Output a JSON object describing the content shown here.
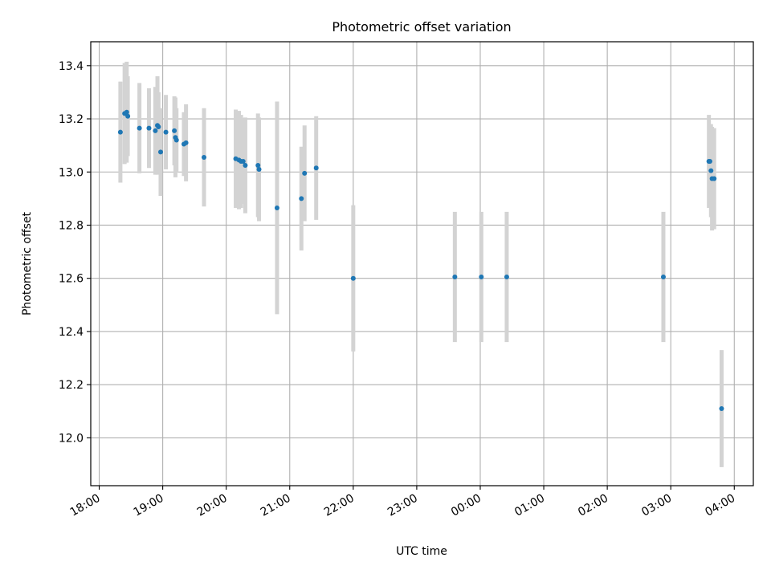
{
  "chart_data": {
    "type": "scatter",
    "title": "Photometric offset variation",
    "xlabel": "UTC time",
    "ylabel": "Photometric offset",
    "x_type": "time",
    "xlim": [
      "17:52",
      "04:18"
    ],
    "ylim": [
      11.82,
      13.49
    ],
    "x_ticks": [
      "18:00",
      "19:00",
      "20:00",
      "21:00",
      "22:00",
      "23:00",
      "00:00",
      "01:00",
      "02:00",
      "03:00",
      "04:00"
    ],
    "y_ticks": [
      12.0,
      12.2,
      12.4,
      12.6,
      12.8,
      13.0,
      13.2,
      13.4
    ],
    "grid": true,
    "colors": {
      "point": "#1f77b4",
      "errorbar": "#d3d3d3",
      "grid": "#b0b0b0"
    },
    "series": [
      {
        "points": [
          {
            "x": "18:20",
            "y": 13.15,
            "err": 0.19
          },
          {
            "x": "18:24",
            "y": 13.22,
            "err": 0.19
          },
          {
            "x": "18:26",
            "y": 13.225,
            "err": 0.19
          },
          {
            "x": "18:27",
            "y": 13.21,
            "err": 0.15
          },
          {
            "x": "18:38",
            "y": 13.165,
            "err": 0.17
          },
          {
            "x": "18:47",
            "y": 13.165,
            "err": 0.15
          },
          {
            "x": "18:53",
            "y": 13.155,
            "err": 0.165
          },
          {
            "x": "18:55",
            "y": 13.175,
            "err": 0.185
          },
          {
            "x": "18:56",
            "y": 13.17,
            "err": 0.13
          },
          {
            "x": "18:58",
            "y": 13.075,
            "err": 0.165
          },
          {
            "x": "19:03",
            "y": 13.15,
            "err": 0.14
          },
          {
            "x": "19:11",
            "y": 13.155,
            "err": 0.13
          },
          {
            "x": "19:12",
            "y": 13.13,
            "err": 0.15
          },
          {
            "x": "19:13",
            "y": 13.12,
            "err": 0.12
          },
          {
            "x": "19:20",
            "y": 13.105,
            "err": 0.12
          },
          {
            "x": "19:22",
            "y": 13.11,
            "err": 0.145
          },
          {
            "x": "19:39",
            "y": 13.055,
            "err": 0.185
          },
          {
            "x": "20:09",
            "y": 13.05,
            "err": 0.185
          },
          {
            "x": "20:12",
            "y": 13.045,
            "err": 0.185
          },
          {
            "x": "20:14",
            "y": 13.04,
            "err": 0.175
          },
          {
            "x": "20:16",
            "y": 13.04,
            "err": 0.16
          },
          {
            "x": "20:18",
            "y": 13.025,
            "err": 0.18
          },
          {
            "x": "20:30",
            "y": 13.025,
            "err": 0.195
          },
          {
            "x": "20:31",
            "y": 13.01,
            "err": 0.195
          },
          {
            "x": "20:48",
            "y": 12.865,
            "err": 0.4
          },
          {
            "x": "21:11",
            "y": 12.9,
            "err": 0.195
          },
          {
            "x": "21:14",
            "y": 12.995,
            "err": 0.18
          },
          {
            "x": "21:25",
            "y": 13.015,
            "err": 0.195
          },
          {
            "x": "22:00",
            "y": 12.6,
            "err": 0.275
          },
          {
            "x": "23:36",
            "y": 12.605,
            "err": 0.245
          },
          {
            "x": "00:01",
            "y": 12.605,
            "err": 0.245
          },
          {
            "x": "00:25",
            "y": 12.605,
            "err": 0.245
          },
          {
            "x": "02:53",
            "y": 12.605,
            "err": 0.245
          },
          {
            "x": "03:36",
            "y": 13.04,
            "err": 0.175
          },
          {
            "x": "03:37",
            "y": 13.04,
            "err": 0.14
          },
          {
            "x": "03:38",
            "y": 13.005,
            "err": 0.175
          },
          {
            "x": "03:39",
            "y": 12.975,
            "err": 0.195
          },
          {
            "x": "03:41",
            "y": 12.975,
            "err": 0.19
          },
          {
            "x": "03:48",
            "y": 12.11,
            "err": 0.22
          }
        ]
      }
    ]
  }
}
